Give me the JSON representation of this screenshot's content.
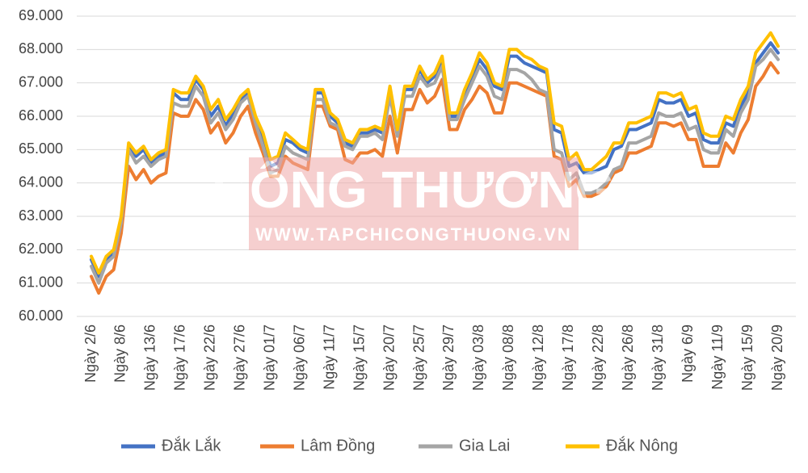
{
  "chart_data": {
    "type": "line",
    "watermark_title": "CÔNG THƯƠNG",
    "watermark_url": "WWW.TAPCHICONGTHUONG.VN",
    "categories": [
      "Ngày 2/6",
      null,
      null,
      null,
      "Ngày 8/6",
      null,
      null,
      null,
      "Ngày 13/6",
      null,
      null,
      null,
      "Ngày 17/6",
      null,
      null,
      null,
      "Ngày 22/6",
      null,
      null,
      null,
      "Ngày 27/6",
      null,
      null,
      null,
      "Ngày 01/7",
      null,
      null,
      null,
      "Ngày 06/7",
      null,
      null,
      null,
      "Ngày 11/7",
      null,
      null,
      null,
      "Ngày 15/7",
      null,
      null,
      null,
      "Ngày 20/7",
      null,
      null,
      null,
      "Ngày 25/7",
      null,
      null,
      null,
      "Ngày 29/7",
      null,
      null,
      null,
      "Ngày 03/8",
      null,
      null,
      null,
      "Ngày 08/8",
      null,
      null,
      null,
      "Ngày 12/8",
      null,
      null,
      null,
      "Ngày 17/8",
      null,
      null,
      null,
      "Ngày 22/8",
      null,
      null,
      null,
      "Ngày 26/8",
      null,
      null,
      null,
      "Ngày 31/8",
      null,
      null,
      null,
      "Ngày 6/9",
      null,
      null,
      null,
      "Ngày 11/9",
      null,
      null,
      null,
      "Ngày 15/9",
      null,
      null,
      null,
      "Ngày 20/9"
    ],
    "series": [
      {
        "name": "Đắk Lắk",
        "color": "#4472c4",
        "values": [
          61700,
          61200,
          61700,
          61900,
          62900,
          65100,
          64800,
          65000,
          64600,
          64800,
          64900,
          66700,
          66500,
          66500,
          67100,
          66800,
          66000,
          66300,
          65700,
          66100,
          66500,
          66700,
          65900,
          65300,
          64500,
          64600,
          65300,
          65200,
          65000,
          64900,
          66700,
          66700,
          66000,
          65800,
          65200,
          65100,
          65500,
          65500,
          65600,
          65500,
          66800,
          65500,
          66800,
          66800,
          67400,
          67000,
          67200,
          67700,
          66000,
          66000,
          66700,
          67200,
          67700,
          67400,
          66900,
          66800,
          67800,
          67800,
          67600,
          67500,
          67400,
          67300,
          65600,
          65500,
          64500,
          64600,
          64300,
          64300,
          64400,
          64500,
          65000,
          65100,
          65600,
          65600,
          65700,
          65800,
          66500,
          66400,
          66400,
          66500,
          66000,
          66100,
          65300,
          65200,
          65200,
          65800,
          65700,
          66300,
          66700,
          67600,
          67900,
          68200,
          67900
        ]
      },
      {
        "name": "Lâm Đồng",
        "color": "#ed7d31",
        "values": [
          61200,
          60700,
          61200,
          61400,
          62500,
          64500,
          64100,
          64400,
          64000,
          64200,
          64300,
          66100,
          66000,
          66000,
          66500,
          66200,
          65500,
          65800,
          65200,
          65500,
          66000,
          66300,
          65500,
          64900,
          64200,
          64200,
          64800,
          64600,
          64500,
          64400,
          66300,
          66300,
          65700,
          65600,
          64700,
          64600,
          64900,
          64900,
          65000,
          64800,
          66000,
          64900,
          66200,
          66200,
          66800,
          66400,
          66600,
          67100,
          65600,
          65600,
          66200,
          66500,
          66900,
          66700,
          66100,
          66100,
          67000,
          67000,
          66900,
          66800,
          66700,
          66600,
          64800,
          64700,
          63900,
          64100,
          63600,
          63600,
          63700,
          63900,
          64300,
          64400,
          64900,
          64900,
          65000,
          65100,
          65800,
          65800,
          65700,
          65800,
          65300,
          65300,
          64500,
          64500,
          64500,
          65200,
          64900,
          65500,
          65900,
          66900,
          67200,
          67600,
          67300
        ]
      },
      {
        "name": "Gia Lai",
        "color": "#a5a5a5",
        "values": [
          61500,
          61000,
          61600,
          61800,
          62800,
          65000,
          64600,
          64800,
          64500,
          64700,
          64800,
          66400,
          66300,
          66300,
          66900,
          66600,
          65800,
          66100,
          65600,
          65900,
          66400,
          66600,
          65800,
          65100,
          64300,
          64400,
          65100,
          64900,
          64800,
          64700,
          66500,
          66500,
          65800,
          65700,
          65100,
          65000,
          65400,
          65400,
          65500,
          65300,
          66600,
          65400,
          66600,
          66600,
          67200,
          66900,
          67000,
          67500,
          65900,
          65900,
          66500,
          67000,
          67500,
          67200,
          66600,
          66500,
          67400,
          67400,
          67300,
          67100,
          66800,
          66700,
          65000,
          64900,
          64100,
          64300,
          63700,
          63700,
          63800,
          64000,
          64400,
          64500,
          65200,
          65200,
          65300,
          65400,
          66100,
          66000,
          66000,
          66100,
          65600,
          65700,
          65000,
          64900,
          64900,
          65600,
          65400,
          66100,
          66500,
          67500,
          67700,
          68000,
          67700
        ]
      },
      {
        "name": "Đắk Nông",
        "color": "#ffc000",
        "values": [
          61800,
          61300,
          61800,
          62000,
          63000,
          65200,
          64900,
          65100,
          64700,
          64900,
          65000,
          66800,
          66700,
          66700,
          67200,
          66900,
          66200,
          66500,
          65900,
          66200,
          66600,
          66800,
          66000,
          65500,
          64700,
          64800,
          65500,
          65300,
          65100,
          65000,
          66800,
          66800,
          66100,
          65900,
          65300,
          65200,
          65600,
          65600,
          65700,
          65600,
          66900,
          65600,
          66900,
          66900,
          67500,
          67100,
          67300,
          67800,
          66100,
          66100,
          66800,
          67300,
          67900,
          67600,
          67000,
          66900,
          68000,
          68000,
          67800,
          67700,
          67500,
          67400,
          65800,
          65700,
          64700,
          64900,
          64400,
          64400,
          64600,
          64800,
          65200,
          65200,
          65800,
          65800,
          65900,
          66000,
          66700,
          66700,
          66600,
          66700,
          66200,
          66300,
          65500,
          65400,
          65400,
          66000,
          65900,
          66500,
          66900,
          67900,
          68200,
          68500,
          68100
        ]
      }
    ],
    "ylim": [
      60000,
      69000
    ],
    "yticks": [
      {
        "value": 60000,
        "label": "60.000"
      },
      {
        "value": 61000,
        "label": "61.000"
      },
      {
        "value": 62000,
        "label": "62.000"
      },
      {
        "value": 63000,
        "label": "63.000"
      },
      {
        "value": 64000,
        "label": "64.000"
      },
      {
        "value": 65000,
        "label": "65.000"
      },
      {
        "value": 66000,
        "label": "66.000"
      },
      {
        "value": 67000,
        "label": "67.000"
      },
      {
        "value": 68000,
        "label": "68.000"
      },
      {
        "value": 69000,
        "label": "69.000"
      }
    ],
    "grid": true,
    "legend": "bottom"
  }
}
